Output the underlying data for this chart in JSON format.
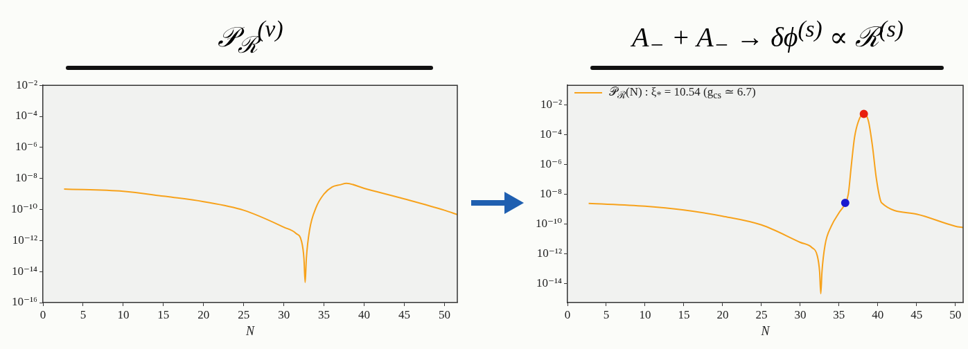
{
  "chart_data": [
    {
      "type": "line",
      "title": "𝒫$_{ℛ}$$^{(v)}$",
      "xlabel": "N",
      "xlim": [
        0,
        51.6
      ],
      "xticks": [
        0,
        5,
        10,
        15,
        20,
        25,
        30,
        35,
        40,
        45,
        50
      ],
      "ylim": [
        1e-16,
        0.01
      ],
      "yticks": [
        {
          "value": 1e-16,
          "label": "10⁻¹⁶"
        },
        {
          "value": 1e-14,
          "label": "10⁻¹⁴"
        },
        {
          "value": 1e-12,
          "label": "10⁻¹²"
        },
        {
          "value": 1e-10,
          "label": "10⁻¹⁰"
        },
        {
          "value": 1e-08,
          "label": "10⁻⁸"
        },
        {
          "value": 1e-06,
          "label": "10⁻⁶"
        },
        {
          "value": 0.0001,
          "label": "10⁻⁴"
        },
        {
          "value": 0.01,
          "label": "10⁻²"
        }
      ],
      "log": "y",
      "grid": false,
      "legend": false,
      "line_style": "solid",
      "marker": "none",
      "series": [
        {
          "color": "#f7a21b",
          "x": [
            2.63,
            10,
            15,
            20,
            25,
            30,
            31.5,
            32.2,
            32.5,
            32.65,
            32.8,
            33.2,
            34,
            35,
            36,
            37,
            37.8,
            40,
            45,
            50,
            51.6
          ],
          "values": [
            2.1e-09,
            1.5e-09,
            7.2e-10,
            3.2e-10,
            8.9e-11,
            7.2e-12,
            2.9e-12,
            8.9e-13,
            7.1e-14,
            2e-15,
            7.1e-14,
            4.7e-12,
            1.3e-10,
            1e-09,
            2.8e-09,
            3.9e-09,
            4.8e-09,
            2.3e-09,
            4.8e-10,
            8.9e-11,
            4.7e-11
          ]
        }
      ]
    },
    {
      "type": "line",
      "title": "A$_{−}$ + A$_{−}$ → δϕ$^{(s)}$ ∝ ℛ$^{(s)}$",
      "xlabel": "N",
      "xlim": [
        0,
        51
      ],
      "xticks": [
        0,
        5,
        10,
        15,
        20,
        25,
        30,
        35,
        40,
        45,
        50
      ],
      "ylim": [
        5e-16,
        0.2
      ],
      "yticks": [
        {
          "value": 1e-14,
          "label": "10⁻¹⁴"
        },
        {
          "value": 1e-12,
          "label": "10⁻¹²"
        },
        {
          "value": 1e-10,
          "label": "10⁻¹⁰"
        },
        {
          "value": 1e-08,
          "label": "10⁻⁸"
        },
        {
          "value": 1e-06,
          "label": "10⁻⁶"
        },
        {
          "value": 0.0001,
          "label": "10⁻⁴"
        },
        {
          "value": 0.01,
          "label": "10⁻²"
        }
      ],
      "log": "y",
      "grid": false,
      "legend": "top left",
      "line_style": "solid",
      "marker": "none",
      "series": [
        {
          "name": "𝒫$_{ℛ}$(N) : ξ$_{*}$ = 10.54 (g$_{cs}$ ≃ 6.7)",
          "color": "#f7a21b",
          "x": [
            2.73,
            10,
            15,
            20,
            25,
            30,
            31.5,
            32.2,
            32.5,
            32.65,
            32.8,
            33.2,
            34,
            35,
            35.8,
            36.2,
            36.6,
            37,
            37.5,
            38.2,
            38.8,
            39.3,
            39.8,
            40.3,
            40.5,
            45,
            50,
            51
          ],
          "values": [
            2.3e-09,
            1.5e-09,
            8.3e-10,
            3.2e-10,
            8.3e-11,
            5.6e-12,
            2.5e-12,
            6.9e-13,
            5.8e-14,
            2e-15,
            5.8e-14,
            3.7e-12,
            6.8e-11,
            5.4e-10,
            2.3e-09,
            1e-08,
            9.8e-07,
            6.3e-05,
            0.00076,
            0.0026,
            0.00076,
            1.8e-05,
            1.2e-07,
            4.4e-09,
            2.5e-09,
            4.4e-10,
            6.8e-11,
            5.5e-11
          ]
        },
        {
          "type": "scatter",
          "marker": "circle",
          "color": "#1a1ad0",
          "x": [
            35.8
          ],
          "values": [
            2.5e-09
          ]
        },
        {
          "type": "scatter",
          "marker": "circle",
          "color": "#e8200e",
          "x": [
            38.2
          ],
          "values": [
            0.0024
          ]
        }
      ]
    }
  ]
}
